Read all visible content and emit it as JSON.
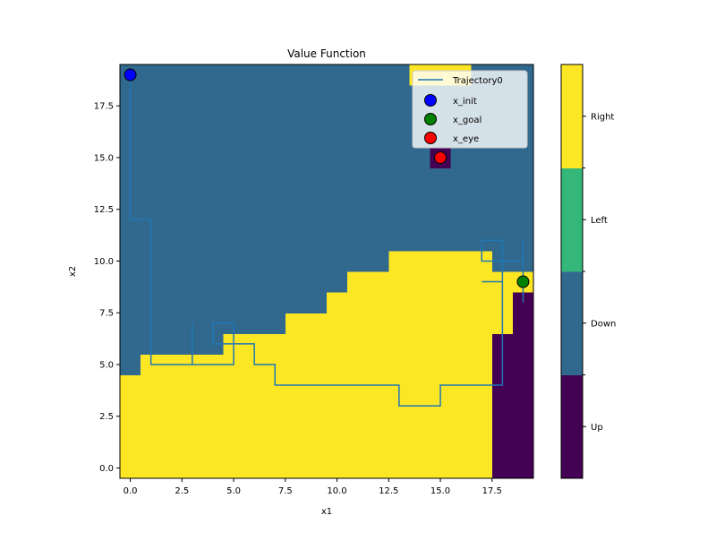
{
  "chart_data": {
    "type": "heatmap",
    "title": "Value Function",
    "xlabel": "x1",
    "ylabel": "x2",
    "xlim": [
      -0.5,
      19.5
    ],
    "ylim": [
      -0.5,
      19.5
    ],
    "x_ticks": [
      0,
      2.5,
      5,
      7.5,
      10,
      12.5,
      15,
      17.5
    ],
    "x_tick_labels": [
      "0.0",
      "2.5",
      "5.0",
      "7.5",
      "10.0",
      "12.5",
      "15.0",
      "17.5"
    ],
    "y_ticks": [
      0,
      2.5,
      5,
      7.5,
      10,
      12.5,
      15,
      17.5
    ],
    "y_tick_labels": [
      "0.0",
      "2.5",
      "5.0",
      "7.5",
      "10.0",
      "12.5",
      "15.0",
      "17.5"
    ],
    "grid": false,
    "colormap": "viridis",
    "categories": [
      "Up",
      "Down",
      "Left",
      "Right"
    ],
    "category_colors": [
      "#440154",
      "#31688e",
      "#35b779",
      "#fde725"
    ],
    "colorbar_labels": [
      "Up",
      "Down",
      "Left",
      "Right"
    ],
    "default_action": "Down",
    "regions": [
      {
        "action": "Right",
        "x": [
          0,
          0
        ],
        "y": [
          0,
          4
        ]
      },
      {
        "action": "Right",
        "x": [
          1,
          4
        ],
        "y": [
          0,
          5
        ]
      },
      {
        "action": "Right",
        "x": [
          5,
          7
        ],
        "y": [
          0,
          6
        ]
      },
      {
        "action": "Right",
        "x": [
          8,
          9
        ],
        "y": [
          0,
          7
        ]
      },
      {
        "action": "Right",
        "x": [
          10,
          10
        ],
        "y": [
          0,
          8
        ]
      },
      {
        "action": "Right",
        "x": [
          11,
          12
        ],
        "y": [
          0,
          9
        ]
      },
      {
        "action": "Right",
        "x": [
          13,
          17
        ],
        "y": [
          0,
          10
        ]
      },
      {
        "action": "Right",
        "x": [
          18,
          18
        ],
        "y": [
          7,
          9
        ]
      },
      {
        "action": "Right",
        "x": [
          19,
          19
        ],
        "y": [
          9,
          9
        ]
      },
      {
        "action": "Right",
        "x": [
          14,
          16
        ],
        "y": [
          19,
          19
        ]
      },
      {
        "action": "Up",
        "x": [
          18,
          18
        ],
        "y": [
          0,
          6
        ]
      },
      {
        "action": "Up",
        "x": [
          19,
          19
        ],
        "y": [
          0,
          8
        ]
      },
      {
        "action": "Up",
        "x": [
          15,
          15
        ],
        "y": [
          15,
          15
        ]
      }
    ],
    "series": [
      {
        "name": "Trajectory0",
        "type": "line",
        "color": "#1f77b4",
        "points": [
          [
            0,
            19
          ],
          [
            0,
            12
          ],
          [
            1,
            12
          ],
          [
            1,
            5
          ],
          [
            3,
            5
          ],
          [
            3,
            7
          ],
          [
            3,
            5
          ],
          [
            5,
            5
          ],
          [
            5,
            7
          ],
          [
            4,
            7
          ],
          [
            4,
            6
          ],
          [
            6,
            6
          ],
          [
            6,
            5
          ],
          [
            7,
            5
          ],
          [
            7,
            4
          ],
          [
            13,
            4
          ],
          [
            13,
            3
          ],
          [
            15,
            3
          ],
          [
            15,
            4
          ],
          [
            18,
            4
          ],
          [
            18,
            9
          ],
          [
            17,
            9
          ],
          [
            18,
            9
          ],
          [
            18,
            11
          ],
          [
            17,
            11
          ],
          [
            17,
            10
          ],
          [
            18.5,
            10
          ],
          [
            19,
            10
          ],
          [
            19,
            11
          ],
          [
            19,
            8
          ]
        ]
      },
      {
        "name": "x_init",
        "type": "scatter",
        "color": "#0000ff",
        "x": [
          0
        ],
        "y": [
          19
        ]
      },
      {
        "name": "x_goal",
        "type": "scatter",
        "color": "#008000",
        "x": [
          19
        ],
        "y": [
          9
        ]
      },
      {
        "name": "x_eye",
        "type": "scatter",
        "color": "#ff0000",
        "x": [
          15
        ],
        "y": [
          15
        ]
      }
    ],
    "legend": {
      "position": "upper right",
      "entries": [
        "Trajectory0",
        "x_init",
        "x_goal",
        "x_eye"
      ]
    }
  }
}
